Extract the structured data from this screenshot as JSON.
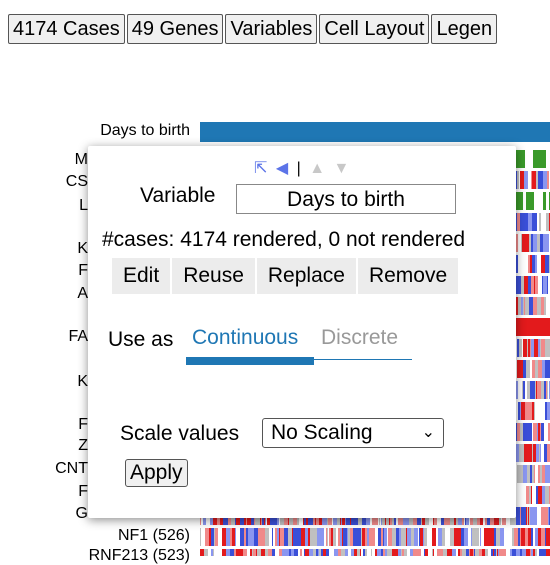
{
  "tabs": [
    "4174 Cases",
    "49 Genes",
    "Variables",
    "Cell Layout",
    "Legen"
  ],
  "term_labels": {
    "days_to_birth": "Days to birth",
    "nf1": "NF1 (526)",
    "rnf213": "RNF213 (523)"
  },
  "clipped_labels": [
    "M",
    "CS",
    "L",
    "K",
    "F",
    "A",
    "FA",
    "K",
    "F",
    "Z",
    "CNT",
    "F",
    "G"
  ],
  "popup": {
    "variable_label": "Variable",
    "variable_value": "Days to birth",
    "cases_text": "#cases: 4174 rendered, 0 not rendered",
    "actions": [
      "Edit",
      "Reuse",
      "Replace",
      "Remove"
    ],
    "use_as_label": "Use as",
    "mode_tabs": [
      "Continuous",
      "Discrete"
    ],
    "scale_label": "Scale values",
    "scale_value": "No Scaling",
    "apply_label": "Apply"
  },
  "colors": {
    "accent": "#1f77b4",
    "mutation_red": "#e31a1c",
    "mutation_blue": "#3a4fd8",
    "green": "#3a9a2a"
  }
}
